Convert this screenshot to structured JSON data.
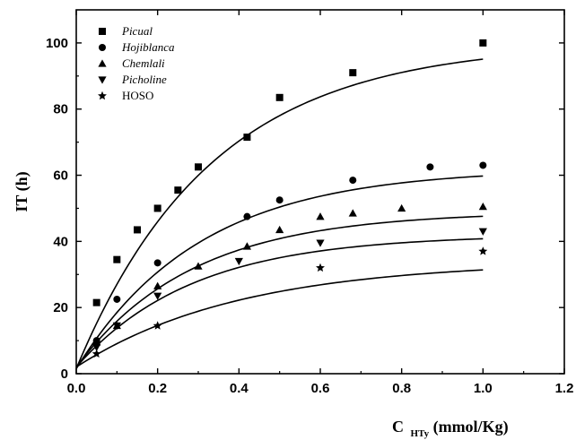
{
  "chart_data": {
    "type": "scatter",
    "ylabel": "IT (h)",
    "xlabel_main": "C",
    "xlabel_sub": "HTy",
    "xlabel_unit": "(mmol/Kg)",
    "xlim": [
      0,
      1.2
    ],
    "ylim": [
      0,
      110
    ],
    "xticks": [
      "0.0",
      "0.2",
      "0.4",
      "0.6",
      "0.8",
      "1.0",
      "1.2"
    ],
    "yticks": [
      "0",
      "20",
      "40",
      "60",
      "80",
      "100"
    ],
    "grid": false,
    "legend_position": "top-left",
    "series": [
      {
        "name": "Picual",
        "italic": true,
        "marker": "square",
        "x": [
          0.05,
          0.1,
          0.15,
          0.2,
          0.25,
          0.3,
          0.42,
          0.5,
          0.68,
          1.0
        ],
        "y": [
          21.5,
          34.5,
          43.5,
          50,
          55.5,
          62.5,
          71.5,
          83.5,
          91,
          100
        ],
        "fit": {
          "a": 100,
          "k": 3.0,
          "c": 1.5
        }
      },
      {
        "name": "Hojiblanca",
        "italic": true,
        "marker": "circle",
        "x": [
          0.05,
          0.1,
          0.2,
          0.42,
          0.5,
          0.68,
          0.87,
          1.0
        ],
        "y": [
          10,
          22.5,
          33.5,
          47.5,
          52.5,
          58.5,
          62.5,
          63
        ],
        "fit": {
          "a": 62,
          "k": 3.3,
          "c": 1.5
        }
      },
      {
        "name": "Chemlali",
        "italic": true,
        "marker": "triangle-up",
        "x": [
          0.05,
          0.1,
          0.2,
          0.3,
          0.42,
          0.5,
          0.6,
          0.68,
          0.8,
          1.0
        ],
        "y": [
          9.5,
          14.5,
          26.5,
          32.5,
          38.5,
          43.5,
          47.5,
          48.5,
          50,
          50.5
        ],
        "fit": {
          "a": 49,
          "k": 3.5,
          "c": 2
        }
      },
      {
        "name": "Picholine",
        "italic": true,
        "marker": "triangle-down",
        "x": [
          0.05,
          0.1,
          0.2,
          0.4,
          0.6,
          1.0
        ],
        "y": [
          8,
          14.5,
          23.5,
          34,
          39.5,
          43
        ],
        "fit": {
          "a": 42,
          "k": 3.5,
          "c": 2
        }
      },
      {
        "name": "HOSO",
        "italic": false,
        "marker": "star",
        "x": [
          0.05,
          0.2,
          0.6,
          1.0
        ],
        "y": [
          6,
          14.5,
          32,
          37
        ],
        "fit": {
          "a": 34,
          "k": 2.5,
          "c": 2
        }
      }
    ]
  }
}
